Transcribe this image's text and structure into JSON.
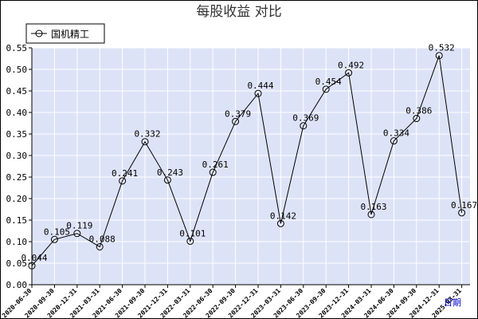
{
  "chart_data": {
    "type": "line",
    "title": "每股收益  对比",
    "xlabel": "日期",
    "ylabel": "",
    "ylim": [
      0,
      0.55
    ],
    "yticks": [
      "0.00",
      "0.05",
      "0.10",
      "0.15",
      "0.20",
      "0.25",
      "0.30",
      "0.35",
      "0.40",
      "0.45",
      "0.50",
      "0.55"
    ],
    "grid": true,
    "legend_position": "top-left",
    "categories": [
      "2020-06-30",
      "2020-09-30",
      "2020-12-31",
      "2021-03-31",
      "2021-06-30",
      "2021-09-30",
      "2021-12-31",
      "2022-03-31",
      "2022-06-30",
      "2022-09-30",
      "2022-12-31",
      "2023-03-31",
      "2023-06-30",
      "2023-09-30",
      "2023-12-31",
      "2024-03-31",
      "2024-06-30",
      "2024-09-30",
      "2024-12-31",
      "2025-03-31"
    ],
    "series": [
      {
        "name": "国机精工",
        "color": "#000000",
        "values": [
          0.044,
          0.105,
          0.119,
          0.088,
          0.241,
          0.332,
          0.243,
          0.101,
          0.261,
          0.379,
          0.444,
          0.142,
          0.369,
          0.454,
          0.492,
          0.163,
          0.334,
          0.386,
          0.532,
          0.167
        ],
        "labels": [
          "0.044",
          "0.105",
          "0.119",
          "0.088",
          "0.241",
          "0.332",
          "0.243",
          "0.101",
          "0.261",
          "0.379",
          "0.444",
          "0.142",
          "0.369",
          "0.454",
          "0.492",
          "0.163",
          "0.334",
          "0.386",
          "0.532",
          "0.167"
        ]
      }
    ],
    "colors": {
      "plot_bg": "#dde3f7",
      "grid": "#ffffff",
      "axis": "#000000",
      "title": "#333333",
      "xlabel": "#0000cc"
    }
  }
}
